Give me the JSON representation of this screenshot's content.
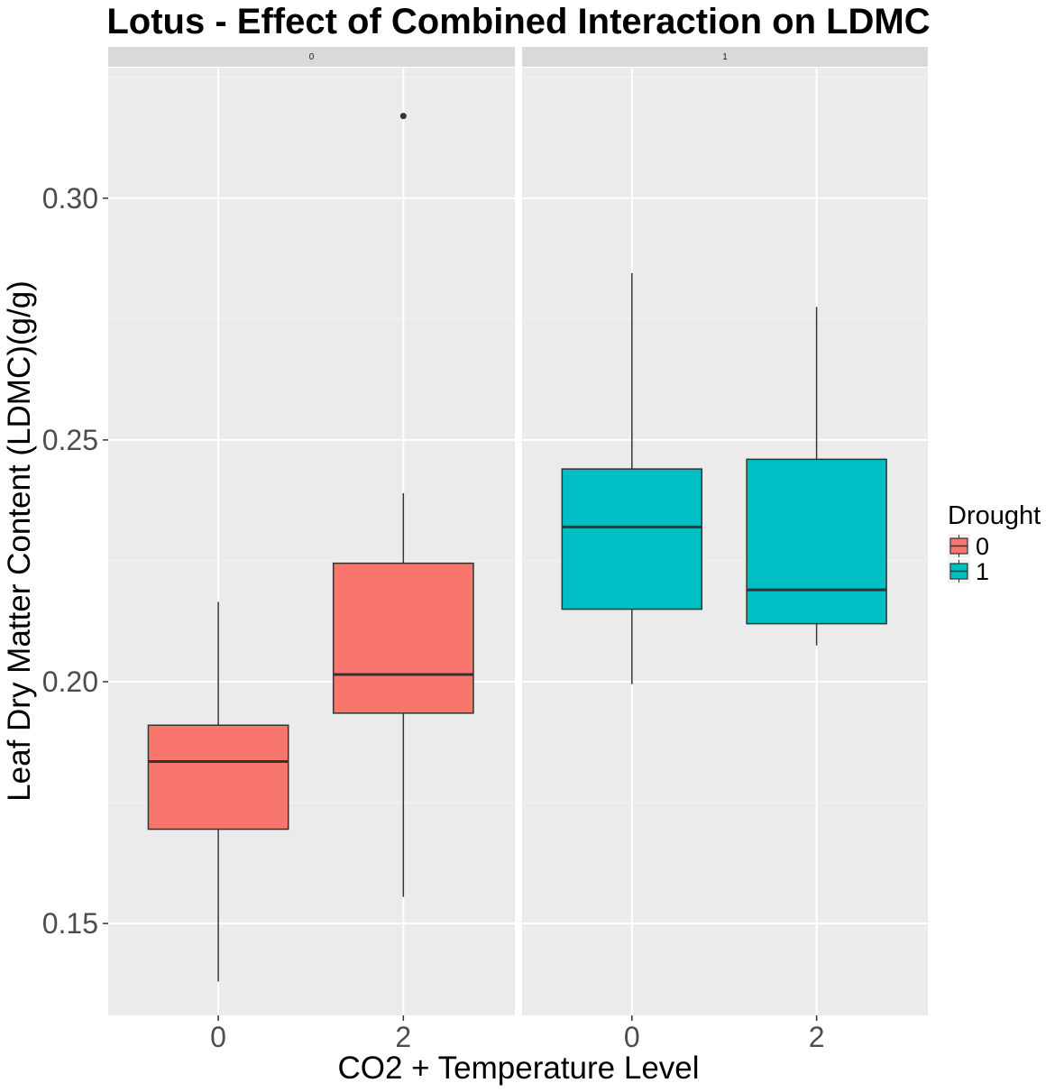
{
  "chart_data": {
    "type": "box",
    "title": "Lotus - Effect of Combined Interaction on LDMC",
    "xlabel": "CO2 + Temperature Level",
    "ylabel": "Leaf Dry Matter Content (LDMC)(g/g)",
    "y_ticks": [
      "0.15",
      "0.20",
      "0.25",
      "0.30"
    ],
    "ylim": [
      0.131,
      0.327
    ],
    "grid": true,
    "legend": {
      "title": "Drought",
      "position": "right",
      "entries": [
        {
          "label": "0",
          "color": "#F8766D"
        },
        {
          "label": "1",
          "color": "#00BFC4"
        }
      ]
    },
    "panels": [
      {
        "strip": "0",
        "categories": [
          "0",
          "2"
        ],
        "boxes": [
          {
            "x": "0",
            "group": "0",
            "whisker_low": 0.138,
            "q1": 0.1695,
            "median": 0.1835,
            "q3": 0.191,
            "whisker_high": 0.2165,
            "outliers": []
          },
          {
            "x": "2",
            "group": "0",
            "whisker_low": 0.1555,
            "q1": 0.1935,
            "median": 0.2015,
            "q3": 0.2245,
            "whisker_high": 0.239,
            "outliers": [
              0.317
            ]
          }
        ]
      },
      {
        "strip": "1",
        "categories": [
          "0",
          "2"
        ],
        "boxes": [
          {
            "x": "0",
            "group": "1",
            "whisker_low": 0.1995,
            "q1": 0.215,
            "median": 0.232,
            "q3": 0.244,
            "whisker_high": 0.2845,
            "outliers": []
          },
          {
            "x": "2",
            "group": "1",
            "whisker_low": 0.2075,
            "q1": 0.212,
            "median": 0.219,
            "q3": 0.246,
            "whisker_high": 0.2775,
            "outliers": []
          }
        ]
      }
    ]
  }
}
